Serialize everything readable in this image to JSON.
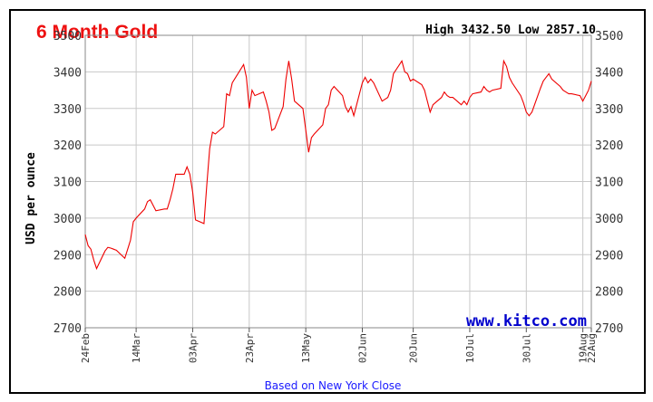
{
  "header": {
    "title": "6 Month Gold",
    "high_low": "High 3432.50 Low 2857.10"
  },
  "footer": {
    "watermark": "www.kitco.com",
    "note": "Based on New York Close"
  },
  "colors": {
    "title": "#ee1111",
    "line": "#ee0000",
    "grid": "#c8c8c8",
    "watermark": "#0000cc",
    "note": "#1a1aff"
  },
  "chart_data": {
    "type": "line",
    "ylabel": "USD per ounce",
    "xlabel": "",
    "ylim": [
      2700,
      3500
    ],
    "yticks": [
      2700,
      2800,
      2900,
      3000,
      3100,
      3200,
      3300,
      3400,
      3500
    ],
    "xlim": [
      "2025-02-24",
      "2025-08-22"
    ],
    "xticks": [
      {
        "date": "2025-02-24",
        "label": "24Feb"
      },
      {
        "date": "2025-03-14",
        "label": "14Mar"
      },
      {
        "date": "2025-04-03",
        "label": "03Apr"
      },
      {
        "date": "2025-04-23",
        "label": "23Apr"
      },
      {
        "date": "2025-05-13",
        "label": "13May"
      },
      {
        "date": "2025-06-02",
        "label": "02Jun"
      },
      {
        "date": "2025-06-20",
        "label": "20Jun"
      },
      {
        "date": "2025-07-10",
        "label": "10Jul"
      },
      {
        "date": "2025-07-30",
        "label": "30Jul"
      },
      {
        "date": "2025-08-19",
        "label": "19Aug"
      },
      {
        "date": "2025-08-22",
        "label": "22Aug"
      }
    ],
    "grid": true,
    "series": [
      {
        "x": [
          "2025-02-24",
          "2025-02-25",
          "2025-02-26",
          "2025-02-27",
          "2025-02-28",
          "2025-03-03",
          "2025-03-04",
          "2025-03-05",
          "2025-03-06",
          "2025-03-07",
          "2025-03-10",
          "2025-03-11",
          "2025-03-12",
          "2025-03-13",
          "2025-03-14",
          "2025-03-17",
          "2025-03-18",
          "2025-03-19",
          "2025-03-20",
          "2025-03-21",
          "2025-03-24",
          "2025-03-25",
          "2025-03-26",
          "2025-03-27",
          "2025-03-28",
          "2025-03-31",
          "2025-04-01",
          "2025-04-02",
          "2025-04-03",
          "2025-04-04",
          "2025-04-07",
          "2025-04-08",
          "2025-04-09",
          "2025-04-10",
          "2025-04-11",
          "2025-04-14",
          "2025-04-15",
          "2025-04-16",
          "2025-04-17",
          "2025-04-21",
          "2025-04-22",
          "2025-04-23",
          "2025-04-24",
          "2025-04-25",
          "2025-04-28",
          "2025-04-29",
          "2025-04-30",
          "2025-05-01",
          "2025-05-02",
          "2025-05-05",
          "2025-05-06",
          "2025-05-07",
          "2025-05-08",
          "2025-05-09",
          "2025-05-12",
          "2025-05-13",
          "2025-05-14",
          "2025-05-15",
          "2025-05-16",
          "2025-05-19",
          "2025-05-20",
          "2025-05-21",
          "2025-05-22",
          "2025-05-23",
          "2025-05-26",
          "2025-05-27",
          "2025-05-28",
          "2025-05-29",
          "2025-05-30",
          "2025-06-02",
          "2025-06-03",
          "2025-06-04",
          "2025-06-05",
          "2025-06-06",
          "2025-06-09",
          "2025-06-10",
          "2025-06-11",
          "2025-06-12",
          "2025-06-13",
          "2025-06-16",
          "2025-06-17",
          "2025-06-18",
          "2025-06-19",
          "2025-06-20",
          "2025-06-23",
          "2025-06-24",
          "2025-06-25",
          "2025-06-26",
          "2025-06-27",
          "2025-06-30",
          "2025-07-01",
          "2025-07-02",
          "2025-07-03",
          "2025-07-04",
          "2025-07-07",
          "2025-07-08",
          "2025-07-09",
          "2025-07-10",
          "2025-07-11",
          "2025-07-14",
          "2025-07-15",
          "2025-07-16",
          "2025-07-17",
          "2025-07-18",
          "2025-07-21",
          "2025-07-22",
          "2025-07-23",
          "2025-07-24",
          "2025-07-25",
          "2025-07-28",
          "2025-07-29",
          "2025-07-30",
          "2025-07-31",
          "2025-08-01",
          "2025-08-04",
          "2025-08-05",
          "2025-08-06",
          "2025-08-07",
          "2025-08-08",
          "2025-08-11",
          "2025-08-12",
          "2025-08-13",
          "2025-08-14",
          "2025-08-15",
          "2025-08-18",
          "2025-08-19",
          "2025-08-20",
          "2025-08-21",
          "2025-08-22"
        ],
        "values": [
          2955,
          2925,
          2915,
          2885,
          2862,
          2910,
          2920,
          2918,
          2915,
          2912,
          2890,
          2915,
          2940,
          2990,
          3000,
          3025,
          3045,
          3050,
          3035,
          3020,
          3025,
          3025,
          3050,
          3080,
          3120,
          3120,
          3140,
          3120,
          3070,
          2995,
          2985,
          3090,
          3190,
          3235,
          3230,
          3250,
          3340,
          3335,
          3370,
          3420,
          3385,
          3300,
          3350,
          3335,
          3345,
          3320,
          3290,
          3240,
          3245,
          3305,
          3380,
          3430,
          3380,
          3320,
          3300,
          3240,
          3180,
          3220,
          3230,
          3255,
          3300,
          3310,
          3350,
          3360,
          3335,
          3305,
          3290,
          3305,
          3280,
          3370,
          3385,
          3370,
          3380,
          3370,
          3320,
          3325,
          3330,
          3350,
          3395,
          3430,
          3400,
          3395,
          3375,
          3380,
          3365,
          3350,
          3320,
          3290,
          3310,
          3330,
          3345,
          3335,
          3330,
          3330,
          3310,
          3320,
          3310,
          3330,
          3340,
          3345,
          3360,
          3350,
          3345,
          3350,
          3355,
          3430,
          3415,
          3385,
          3370,
          3335,
          3315,
          3290,
          3280,
          3290,
          3355,
          3375,
          3385,
          3395,
          3380,
          3360,
          3350,
          3345,
          3340,
          3340,
          3335,
          3320,
          3335,
          3350,
          3375
        ]
      }
    ]
  }
}
